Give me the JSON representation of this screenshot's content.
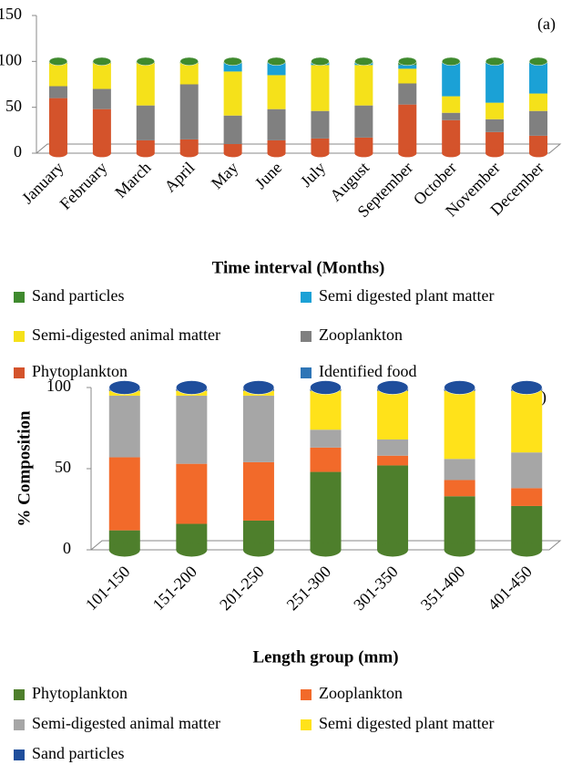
{
  "chart_data": [
    {
      "type": "bar",
      "stacked": true,
      "title": "(a)",
      "ylabel": "% Composition",
      "xlabel": "Time interval (Months)",
      "categories": [
        "January",
        "February",
        "March",
        "April",
        "May",
        "June",
        "July",
        "August",
        "September",
        "October",
        "November",
        "December"
      ],
      "series": [
        {
          "name": "Phytoplankton",
          "color": "#d4532b",
          "values": [
            60,
            48,
            14,
            15,
            10,
            14,
            16,
            17,
            53,
            36,
            23,
            19
          ]
        },
        {
          "name": "Zooplankton",
          "color": "#808080",
          "values": [
            13,
            22,
            38,
            60,
            31,
            34,
            30,
            35,
            23,
            8,
            14,
            27
          ]
        },
        {
          "name": "Semi-digested animal matter",
          "color": "#f5e11a",
          "values": [
            25,
            28,
            46,
            23,
            48,
            37,
            50,
            44,
            16,
            18,
            18,
            19
          ]
        },
        {
          "name": "Semi digested plant matter",
          "color": "#1ba1d6",
          "values": [
            0,
            0,
            0,
            0,
            9,
            13,
            2,
            2,
            4,
            36,
            43,
            33
          ]
        },
        {
          "name": "Sand particles",
          "color": "#3f8a2e",
          "values": [
            2,
            2,
            2,
            2,
            2,
            2,
            2,
            2,
            4,
            2,
            2,
            2
          ]
        },
        {
          "name": "Identified food",
          "color": "#2e75b6",
          "values": [
            0,
            0,
            0,
            0,
            0,
            0,
            0,
            0,
            0,
            0,
            0,
            0
          ]
        }
      ],
      "ylim": [
        0,
        150
      ],
      "yticks": [
        0,
        50,
        100,
        150
      ]
    },
    {
      "type": "bar",
      "stacked": true,
      "title": "(b)",
      "ylabel": "% Composition",
      "xlabel": "Length group (mm)",
      "categories": [
        "101-150",
        "151-200",
        "201-250",
        "251-300",
        "301-350",
        "351-400",
        "401-450"
      ],
      "series": [
        {
          "name": "Phytoplankton",
          "color": "#4e7f2c",
          "values": [
            12,
            16,
            18,
            48,
            52,
            33,
            27
          ]
        },
        {
          "name": "Zooplankton",
          "color": "#f26a2a",
          "values": [
            45,
            37,
            36,
            15,
            6,
            10,
            11
          ]
        },
        {
          "name": "Semi-digested animal matter",
          "color": "#a6a6a6",
          "values": [
            38,
            42,
            41,
            11,
            10,
            13,
            22
          ]
        },
        {
          "name": "Semi digested plant matter",
          "color": "#ffe21a",
          "values": [
            3,
            3,
            3,
            24,
            30,
            42,
            38
          ]
        },
        {
          "name": "Sand particles",
          "color": "#1f4e9c",
          "values": [
            2,
            2,
            2,
            2,
            2,
            2,
            2
          ]
        }
      ],
      "ylim": [
        0,
        100
      ],
      "yticks": [
        0,
        50,
        100
      ]
    }
  ]
}
